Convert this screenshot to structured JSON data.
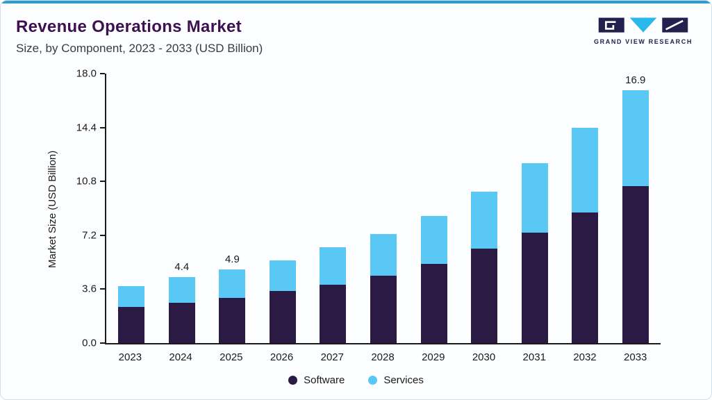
{
  "header": {
    "title": "Revenue Operations Market",
    "subtitle": "Size, by Component, 2023 - 2033 (USD Billion)",
    "brand": "GRAND VIEW RESEARCH"
  },
  "colors": {
    "accent_line": "#2e9bd6",
    "title_text": "#3d1053",
    "software": "#2b1b44",
    "services": "#5ac8f5",
    "axis": "#1a1a1a",
    "card_border": "#cfe0ec",
    "logo_navy": "#23204f",
    "logo_cyan": "#29b8ea"
  },
  "chart_data": {
    "type": "bar",
    "stacked": true,
    "title": "Revenue Operations Market",
    "subtitle": "Size, by Component, 2023 - 2033 (USD Billion)",
    "ylabel": "Market Size (USD Billion)",
    "xlabel": "",
    "ylim": [
      0,
      18
    ],
    "yticks": [
      0,
      3.6,
      7.2,
      10.8,
      14.4,
      18
    ],
    "ytick_labels": [
      "0.0",
      "3.6",
      "7.2",
      "10.8",
      "14.4",
      "18.0"
    ],
    "categories": [
      "2023",
      "2024",
      "2025",
      "2026",
      "2027",
      "2028",
      "2029",
      "2030",
      "2031",
      "2032",
      "2033"
    ],
    "series": [
      {
        "name": "Software",
        "color": "#2b1b44",
        "values": [
          2.4,
          2.7,
          3.0,
          3.5,
          3.9,
          4.5,
          5.3,
          6.3,
          7.4,
          8.7,
          10.5
        ]
      },
      {
        "name": "Services",
        "color": "#5ac8f5",
        "values": [
          1.4,
          1.7,
          1.9,
          2.0,
          2.5,
          2.8,
          3.2,
          3.8,
          4.6,
          5.7,
          6.4
        ]
      }
    ],
    "totals": [
      3.8,
      4.4,
      4.9,
      5.5,
      6.4,
      7.3,
      8.5,
      10.1,
      12.0,
      14.4,
      16.9
    ],
    "bar_labels": [
      "",
      "4.4",
      "4.9",
      "",
      "",
      "",
      "",
      "",
      "",
      "",
      "16.9"
    ],
    "legend": [
      "Software",
      "Services"
    ],
    "legend_position": "bottom",
    "grid": false
  }
}
